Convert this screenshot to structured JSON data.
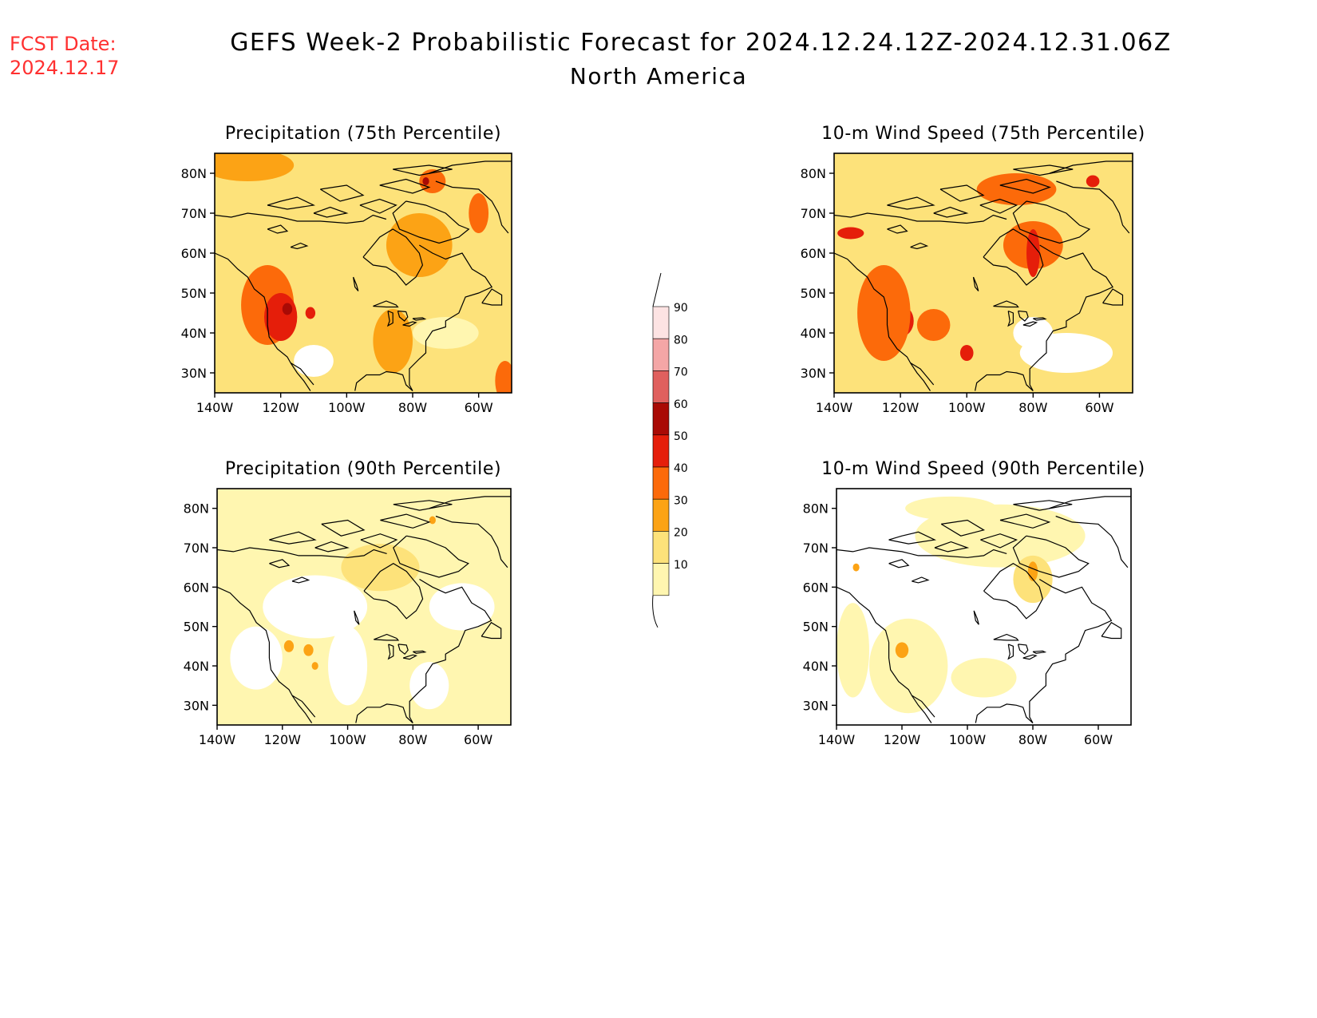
{
  "header": {
    "fcst_label": "FCST Date:",
    "fcst_date": "2024.12.17",
    "title": "GEFS Week-2 Probabilistic Forecast for 2024.12.24.12Z-2024.12.31.06Z",
    "subtitle": "North America"
  },
  "colors": {
    "fcst_text": "#ff3030",
    "levels": [
      "#ffffff",
      "#fff6b0",
      "#fde27a",
      "#fca315",
      "#fc6a0a",
      "#e51e0a",
      "#a90a05",
      "#e0605e",
      "#f4a6a6",
      "#fde3e3"
    ]
  },
  "colorbar": {
    "labels": [
      "90",
      "80",
      "70",
      "60",
      "50",
      "40",
      "30",
      "20",
      "10"
    ]
  },
  "axes": {
    "x_ticks": [
      "140W",
      "120W",
      "100W",
      "80W",
      "60W"
    ],
    "y_ticks": [
      "80N",
      "70N",
      "60N",
      "50N",
      "40N",
      "30N"
    ],
    "lon_range": [
      -140,
      -50
    ],
    "lat_range": [
      25,
      85
    ]
  },
  "panels": [
    {
      "id": "precip-75",
      "title": "Precipitation (75th Percentile)",
      "background_level": 2,
      "blobs": [
        {
          "lon": -124,
          "lat": 47,
          "level": 4,
          "rx": 8,
          "ry": 10
        },
        {
          "lon": -120,
          "lat": 44,
          "level": 5,
          "rx": 5,
          "ry": 6
        },
        {
          "lon": -118,
          "lat": 46,
          "level": 6,
          "rx": 1.5,
          "ry": 1.5
        },
        {
          "lon": -111,
          "lat": 45,
          "level": 5,
          "rx": 1.5,
          "ry": 1.5
        },
        {
          "lon": -86,
          "lat": 38,
          "level": 3,
          "rx": 6,
          "ry": 8
        },
        {
          "lon": -78,
          "lat": 62,
          "level": 3,
          "rx": 10,
          "ry": 8
        },
        {
          "lon": -74,
          "lat": 78,
          "level": 4,
          "rx": 4,
          "ry": 3
        },
        {
          "lon": -76,
          "lat": 78,
          "level": 6,
          "rx": 1,
          "ry": 1
        },
        {
          "lon": -60,
          "lat": 70,
          "level": 4,
          "rx": 3,
          "ry": 5
        },
        {
          "lon": -130,
          "lat": 82,
          "level": 3,
          "rx": 14,
          "ry": 4
        },
        {
          "lon": -110,
          "lat": 33,
          "level": 0,
          "rx": 6,
          "ry": 4
        },
        {
          "lon": -70,
          "lat": 40,
          "level": 1,
          "rx": 10,
          "ry": 4
        },
        {
          "lon": -52,
          "lat": 28,
          "level": 4,
          "rx": 3,
          "ry": 5
        }
      ]
    },
    {
      "id": "wind-75",
      "title": "10-m Wind Speed (75th Percentile)",
      "background_level": 2,
      "blobs": [
        {
          "lon": -80,
          "lat": 62,
          "level": 4,
          "rx": 9,
          "ry": 6
        },
        {
          "lon": -80,
          "lat": 60,
          "level": 5,
          "rx": 2,
          "ry": 6
        },
        {
          "lon": -135,
          "lat": 65,
          "level": 5,
          "rx": 4,
          "ry": 1.5
        },
        {
          "lon": -120,
          "lat": 43,
          "level": 5,
          "rx": 4,
          "ry": 4
        },
        {
          "lon": -125,
          "lat": 45,
          "level": 4,
          "rx": 8,
          "ry": 12
        },
        {
          "lon": -100,
          "lat": 35,
          "level": 5,
          "rx": 2,
          "ry": 2
        },
        {
          "lon": -110,
          "lat": 42,
          "level": 4,
          "rx": 5,
          "ry": 4
        },
        {
          "lon": -70,
          "lat": 35,
          "level": 0,
          "rx": 14,
          "ry": 5
        },
        {
          "lon": -80,
          "lat": 40,
          "level": 0,
          "rx": 6,
          "ry": 4
        },
        {
          "lon": -85,
          "lat": 76,
          "level": 4,
          "rx": 12,
          "ry": 4
        },
        {
          "lon": -62,
          "lat": 78,
          "level": 5,
          "rx": 2,
          "ry": 1.5
        }
      ]
    },
    {
      "id": "precip-90",
      "title": "Precipitation (90th Percentile)",
      "background_level": 1,
      "blobs": [
        {
          "lon": -110,
          "lat": 55,
          "level": 0,
          "rx": 16,
          "ry": 8
        },
        {
          "lon": -128,
          "lat": 42,
          "level": 0,
          "rx": 8,
          "ry": 8
        },
        {
          "lon": -100,
          "lat": 40,
          "level": 0,
          "rx": 6,
          "ry": 10
        },
        {
          "lon": -65,
          "lat": 55,
          "level": 0,
          "rx": 10,
          "ry": 6
        },
        {
          "lon": -75,
          "lat": 35,
          "level": 0,
          "rx": 6,
          "ry": 6
        },
        {
          "lon": -118,
          "lat": 45,
          "level": 3,
          "rx": 1.5,
          "ry": 1.5
        },
        {
          "lon": -112,
          "lat": 44,
          "level": 3,
          "rx": 1.5,
          "ry": 1.5
        },
        {
          "lon": -110,
          "lat": 40,
          "level": 3,
          "rx": 1,
          "ry": 1
        },
        {
          "lon": -90,
          "lat": 65,
          "level": 2,
          "rx": 12,
          "ry": 6
        },
        {
          "lon": -74,
          "lat": 77,
          "level": 3,
          "rx": 1,
          "ry": 1
        }
      ]
    },
    {
      "id": "wind-90",
      "title": "10-m Wind Speed (90th Percentile)",
      "background_level": 0,
      "blobs": [
        {
          "lon": -90,
          "lat": 73,
          "level": 1,
          "rx": 26,
          "ry": 8
        },
        {
          "lon": -80,
          "lat": 62,
          "level": 2,
          "rx": 6,
          "ry": 6
        },
        {
          "lon": -80,
          "lat": 64,
          "level": 3,
          "rx": 1.5,
          "ry": 2.5
        },
        {
          "lon": -118,
          "lat": 40,
          "level": 1,
          "rx": 12,
          "ry": 12
        },
        {
          "lon": -120,
          "lat": 44,
          "level": 3,
          "rx": 2,
          "ry": 2
        },
        {
          "lon": -134,
          "lat": 65,
          "level": 3,
          "rx": 1,
          "ry": 1
        },
        {
          "lon": -95,
          "lat": 37,
          "level": 1,
          "rx": 10,
          "ry": 5
        },
        {
          "lon": -135,
          "lat": 44,
          "level": 1,
          "rx": 5,
          "ry": 12
        },
        {
          "lon": -105,
          "lat": 80,
          "level": 1,
          "rx": 14,
          "ry": 3
        }
      ]
    }
  ]
}
